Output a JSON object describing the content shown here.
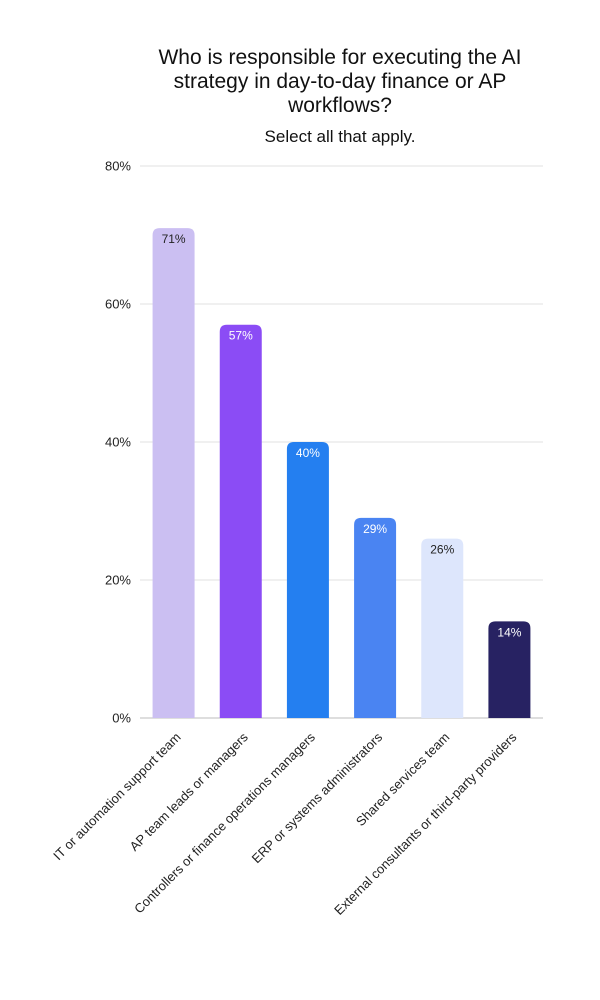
{
  "chart_data": {
    "type": "bar",
    "title": "Who is responsible for executing the AI strategy in day-to-day finance or AP workflows?",
    "subtitle": "Select all that apply.",
    "categories": [
      "IT or automation support team",
      "AP team leads or managers",
      "Controllers or finance operations managers",
      "ERP or systems administrators",
      "Shared services team",
      "External consultants or third-party providers"
    ],
    "values": [
      71,
      57,
      40,
      29,
      26,
      14
    ],
    "value_labels": [
      "71%",
      "57%",
      "40%",
      "29%",
      "26%",
      "14%"
    ],
    "bar_colors": [
      "#cbbff2",
      "#8b4cf5",
      "#247ff0",
      "#4a84f2",
      "#dde6fc",
      "#272262"
    ],
    "label_colors": [
      "#222222",
      "#ffffff",
      "#ffffff",
      "#ffffff",
      "#222222",
      "#ffffff"
    ],
    "ylim": [
      0,
      80
    ],
    "y_ticks": [
      0,
      20,
      40,
      60,
      80
    ],
    "y_tick_labels": [
      "0%",
      "20%",
      "40%",
      "60%",
      "80%"
    ],
    "grid": true,
    "xlabel": "",
    "ylabel": ""
  }
}
